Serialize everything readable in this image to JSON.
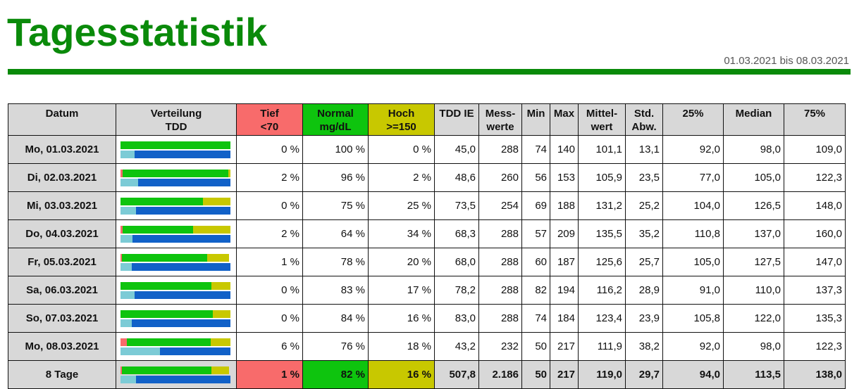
{
  "title": "Tagesstatistik",
  "date_range": "01.03.2021 bis 08.03.2021",
  "colors": {
    "brand_green": "#0a8a0a",
    "tief": "#f86b6b",
    "normal": "#0ec40e",
    "hoch": "#c8c800",
    "basal": "#7ccbd6",
    "bolus": "#1161c8"
  },
  "headers": {
    "datum": "Datum",
    "verteilung_1": "Verteilung",
    "verteilung_2": "TDD",
    "tief_1": "Tief",
    "tief_2": "<70",
    "normal_1": "Normal",
    "normal_2": "mg/dL",
    "hoch_1": "Hoch",
    "hoch_2": ">=150",
    "tdd": "TDD IE",
    "mess_1": "Mess-",
    "mess_2": "werte",
    "min": "Min",
    "max": "Max",
    "mittel_1": "Mittel-",
    "mittel_2": "wert",
    "std_1": "Std.",
    "std_2": "Abw.",
    "p25": "25%",
    "median": "Median",
    "p75": "75%"
  },
  "rows": [
    {
      "datum": "Mo, 01.03.2021",
      "tief": "0 %",
      "normal": "100 %",
      "hoch": "0 %",
      "tdd": "45,0",
      "mess": "288",
      "min": "74",
      "max": "140",
      "mittel": "101,1",
      "std": "13,1",
      "p25": "92,0",
      "median": "98,0",
      "p75": "109,0",
      "dist": {
        "tief": 0,
        "normal": 100,
        "hoch": 0,
        "basal": 13,
        "bolus": 87
      }
    },
    {
      "datum": "Di, 02.03.2021",
      "tief": "2 %",
      "normal": "96 %",
      "hoch": "2 %",
      "tdd": "48,6",
      "mess": "260",
      "min": "56",
      "max": "153",
      "mittel": "105,9",
      "std": "23,5",
      "p25": "77,0",
      "median": "105,0",
      "p75": "122,3",
      "dist": {
        "tief": 2,
        "normal": 96,
        "hoch": 2,
        "basal": 16,
        "bolus": 84
      }
    },
    {
      "datum": "Mi, 03.03.2021",
      "tief": "0 %",
      "normal": "75 %",
      "hoch": "25 %",
      "tdd": "73,5",
      "mess": "254",
      "min": "69",
      "max": "188",
      "mittel": "131,2",
      "std": "25,2",
      "p25": "104,0",
      "median": "126,5",
      "p75": "148,0",
      "dist": {
        "tief": 0,
        "normal": 75,
        "hoch": 25,
        "basal": 14,
        "bolus": 86
      }
    },
    {
      "datum": "Do, 04.03.2021",
      "tief": "2 %",
      "normal": "64 %",
      "hoch": "34 %",
      "tdd": "68,3",
      "mess": "288",
      "min": "57",
      "max": "209",
      "mittel": "135,5",
      "std": "35,2",
      "p25": "110,8",
      "median": "137,0",
      "p75": "160,0",
      "dist": {
        "tief": 2,
        "normal": 64,
        "hoch": 34,
        "basal": 11,
        "bolus": 89
      }
    },
    {
      "datum": "Fr, 05.03.2021",
      "tief": "1 %",
      "normal": "78 %",
      "hoch": "20 %",
      "tdd": "68,0",
      "mess": "288",
      "min": "60",
      "max": "187",
      "mittel": "125,6",
      "std": "25,7",
      "p25": "105,0",
      "median": "127,5",
      "p75": "147,0",
      "dist": {
        "tief": 1,
        "normal": 78,
        "hoch": 20,
        "basal": 10,
        "bolus": 90
      }
    },
    {
      "datum": "Sa, 06.03.2021",
      "tief": "0 %",
      "normal": "83 %",
      "hoch": "17 %",
      "tdd": "78,2",
      "mess": "288",
      "min": "82",
      "max": "194",
      "mittel": "116,2",
      "std": "28,9",
      "p25": "91,0",
      "median": "110,0",
      "p75": "137,3",
      "dist": {
        "tief": 0,
        "normal": 83,
        "hoch": 17,
        "basal": 13,
        "bolus": 87
      }
    },
    {
      "datum": "So, 07.03.2021",
      "tief": "0 %",
      "normal": "84 %",
      "hoch": "16 %",
      "tdd": "83,0",
      "mess": "288",
      "min": "74",
      "max": "184",
      "mittel": "123,4",
      "std": "23,9",
      "p25": "105,8",
      "median": "122,0",
      "p75": "135,3",
      "dist": {
        "tief": 0,
        "normal": 84,
        "hoch": 16,
        "basal": 10,
        "bolus": 90
      }
    },
    {
      "datum": "Mo, 08.03.2021",
      "tief": "6 %",
      "normal": "76 %",
      "hoch": "18 %",
      "tdd": "43,2",
      "mess": "232",
      "min": "50",
      "max": "217",
      "mittel": "111,9",
      "std": "38,2",
      "p25": "92,0",
      "median": "98,0",
      "p75": "122,3",
      "dist": {
        "tief": 6,
        "normal": 76,
        "hoch": 18,
        "basal": 36,
        "bolus": 64
      }
    }
  ],
  "total": {
    "datum": "8 Tage",
    "tief": "1 %",
    "normal": "82 %",
    "hoch": "16 %",
    "tdd": "507,8",
    "mess": "2.186",
    "min": "50",
    "max": "217",
    "mittel": "119,0",
    "std": "29,7",
    "p25": "94,0",
    "median": "113,5",
    "p75": "138,0",
    "dist": {
      "tief": 1,
      "normal": 82,
      "hoch": 16,
      "basal": 14,
      "bolus": 86
    }
  }
}
